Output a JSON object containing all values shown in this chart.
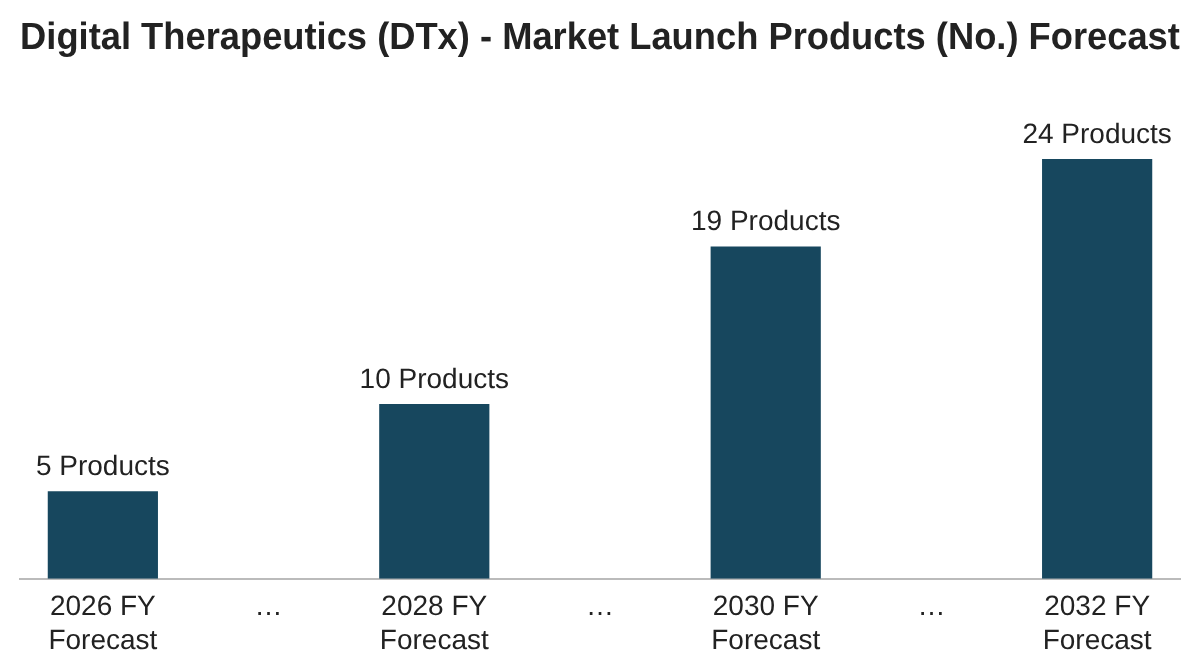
{
  "chart_data": {
    "type": "bar",
    "title": "Digital Therapeutics (DTx) - Market Launch Products (No.) Forecast",
    "categories": [
      "2026 FY Forecast",
      "…",
      "2028 FY Forecast",
      "…",
      "2030 FY Forecast",
      "…",
      "2032 FY Forecast"
    ],
    "values": [
      5,
      null,
      10,
      null,
      19,
      null,
      24
    ],
    "value_labels": [
      "5 Products",
      null,
      "10 Products",
      null,
      "19 Products",
      null,
      "24 Products"
    ],
    "color": "#17475e",
    "grid": false,
    "legend": false
  }
}
